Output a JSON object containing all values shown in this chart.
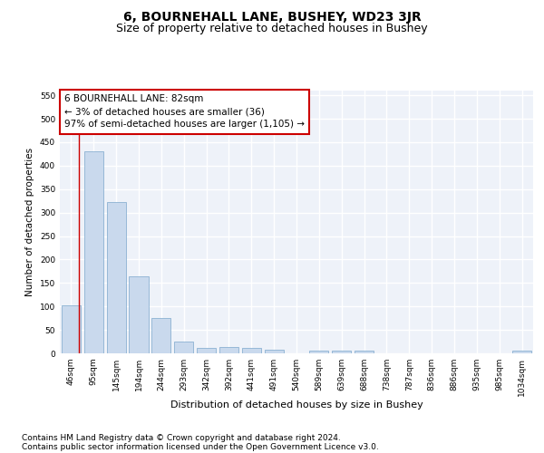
{
  "title": "6, BOURNEHALL LANE, BUSHEY, WD23 3JR",
  "subtitle": "Size of property relative to detached houses in Bushey",
  "xlabel": "Distribution of detached houses by size in Bushey",
  "ylabel": "Number of detached properties",
  "categories": [
    "46sqm",
    "95sqm",
    "145sqm",
    "194sqm",
    "244sqm",
    "293sqm",
    "342sqm",
    "392sqm",
    "441sqm",
    "491sqm",
    "540sqm",
    "589sqm",
    "639sqm",
    "688sqm",
    "738sqm",
    "787sqm",
    "836sqm",
    "886sqm",
    "935sqm",
    "985sqm",
    "1034sqm"
  ],
  "values": [
    103,
    430,
    322,
    165,
    76,
    26,
    12,
    13,
    12,
    8,
    0,
    6,
    6,
    6,
    0,
    0,
    0,
    0,
    0,
    0,
    6
  ],
  "bar_color": "#c9d9ed",
  "bar_edge_color": "#7ba7cc",
  "highlight_color": "#cc0000",
  "annotation_line1": "6 BOURNEHALL LANE: 82sqm",
  "annotation_line2": "← 3% of detached houses are smaller (36)",
  "annotation_line3": "97% of semi-detached houses are larger (1,105) →",
  "annotation_box_color": "#cc0000",
  "ylim": [
    0,
    560
  ],
  "yticks": [
    0,
    50,
    100,
    150,
    200,
    250,
    300,
    350,
    400,
    450,
    500,
    550
  ],
  "background_color": "#eef2f9",
  "grid_color": "#ffffff",
  "footer_line1": "Contains HM Land Registry data © Crown copyright and database right 2024.",
  "footer_line2": "Contains public sector information licensed under the Open Government Licence v3.0.",
  "title_fontsize": 10,
  "subtitle_fontsize": 9,
  "xlabel_fontsize": 8,
  "ylabel_fontsize": 7.5,
  "tick_fontsize": 6.5,
  "annotation_fontsize": 7.5,
  "footer_fontsize": 6.5
}
